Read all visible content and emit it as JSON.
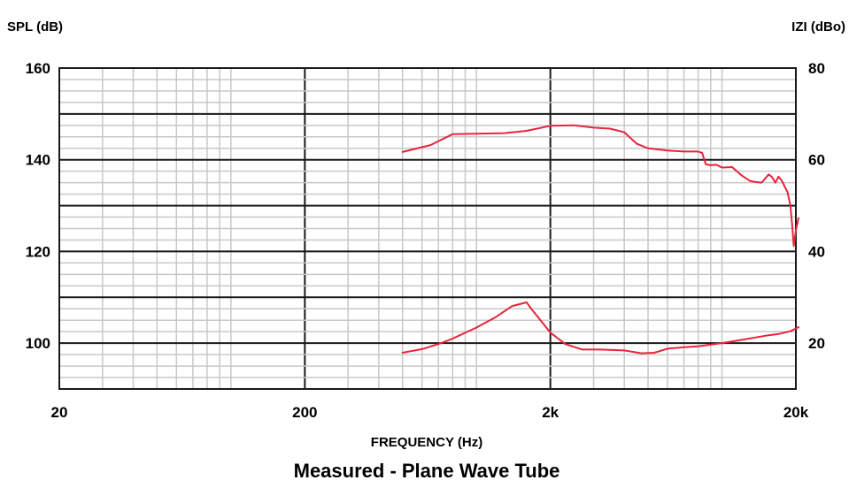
{
  "chart_data": {
    "type": "line",
    "xlabel": "FREQUENCY (Hz)",
    "ylabel_left": "SPL (dB)",
    "ylabel_right": "IZI (dBo)",
    "caption": "Measured - Plane Wave Tube",
    "x_scale": "log",
    "xlim": [
      20,
      20000
    ],
    "x_ticks": [
      20,
      200,
      2000,
      20000
    ],
    "x_tick_labels": [
      "20",
      "200",
      "2k",
      "20k"
    ],
    "ylim_left": [
      90,
      160
    ],
    "left_ticks": [
      100,
      120,
      140,
      160
    ],
    "left_tick_labels": [
      "100",
      "120",
      "140",
      "160"
    ],
    "ylim_right": [
      10,
      80
    ],
    "right_ticks": [
      20,
      40,
      60,
      80
    ],
    "right_tick_labels": [
      "20",
      "40",
      "60",
      "80"
    ],
    "grid": true,
    "line_color": "#e8243c",
    "series": [
      {
        "axis": "left",
        "points": [
          [
            500,
            141.7
          ],
          [
            650,
            143.2
          ],
          [
            800,
            145.6
          ],
          [
            1000,
            145.7
          ],
          [
            1300,
            145.8
          ],
          [
            1600,
            146.3
          ],
          [
            2000,
            147.4
          ],
          [
            2500,
            147.5
          ],
          [
            3000,
            147.0
          ],
          [
            3500,
            146.8
          ],
          [
            4000,
            146.0
          ],
          [
            4500,
            143.5
          ],
          [
            5000,
            142.5
          ],
          [
            6000,
            142.0
          ],
          [
            7000,
            141.8
          ],
          [
            8000,
            141.8
          ],
          [
            8300,
            141.5
          ],
          [
            8600,
            139.0
          ],
          [
            9000,
            138.8
          ],
          [
            9500,
            138.9
          ],
          [
            10000,
            138.3
          ],
          [
            11000,
            138.4
          ],
          [
            12000,
            136.6
          ],
          [
            13000,
            135.4
          ],
          [
            13500,
            135.2
          ],
          [
            14500,
            135.0
          ],
          [
            15500,
            136.8
          ],
          [
            16000,
            136.2
          ],
          [
            16500,
            135.0
          ],
          [
            17000,
            136.3
          ],
          [
            17500,
            135.5
          ],
          [
            18500,
            132.9
          ],
          [
            19000,
            130.0
          ],
          [
            19300,
            126.0
          ],
          [
            19600,
            121.2
          ],
          [
            20000,
            124.6
          ],
          [
            20500,
            127.3
          ]
        ]
      },
      {
        "axis": "right",
        "points": [
          [
            500,
            17.9
          ],
          [
            600,
            18.7
          ],
          [
            700,
            19.8
          ],
          [
            800,
            21.0
          ],
          [
            1000,
            23.4
          ],
          [
            1200,
            25.7
          ],
          [
            1400,
            28.1
          ],
          [
            1600,
            28.9
          ],
          [
            1700,
            27.0
          ],
          [
            2000,
            22.3
          ],
          [
            2300,
            19.8
          ],
          [
            2700,
            18.6
          ],
          [
            3200,
            18.6
          ],
          [
            4000,
            18.4
          ],
          [
            4700,
            17.8
          ],
          [
            5300,
            17.9
          ],
          [
            6000,
            18.8
          ],
          [
            7000,
            19.1
          ],
          [
            8000,
            19.3
          ],
          [
            10000,
            20.0
          ],
          [
            12000,
            20.7
          ],
          [
            15000,
            21.6
          ],
          [
            17000,
            22.0
          ],
          [
            19000,
            22.6
          ],
          [
            20500,
            23.5
          ]
        ]
      }
    ]
  }
}
